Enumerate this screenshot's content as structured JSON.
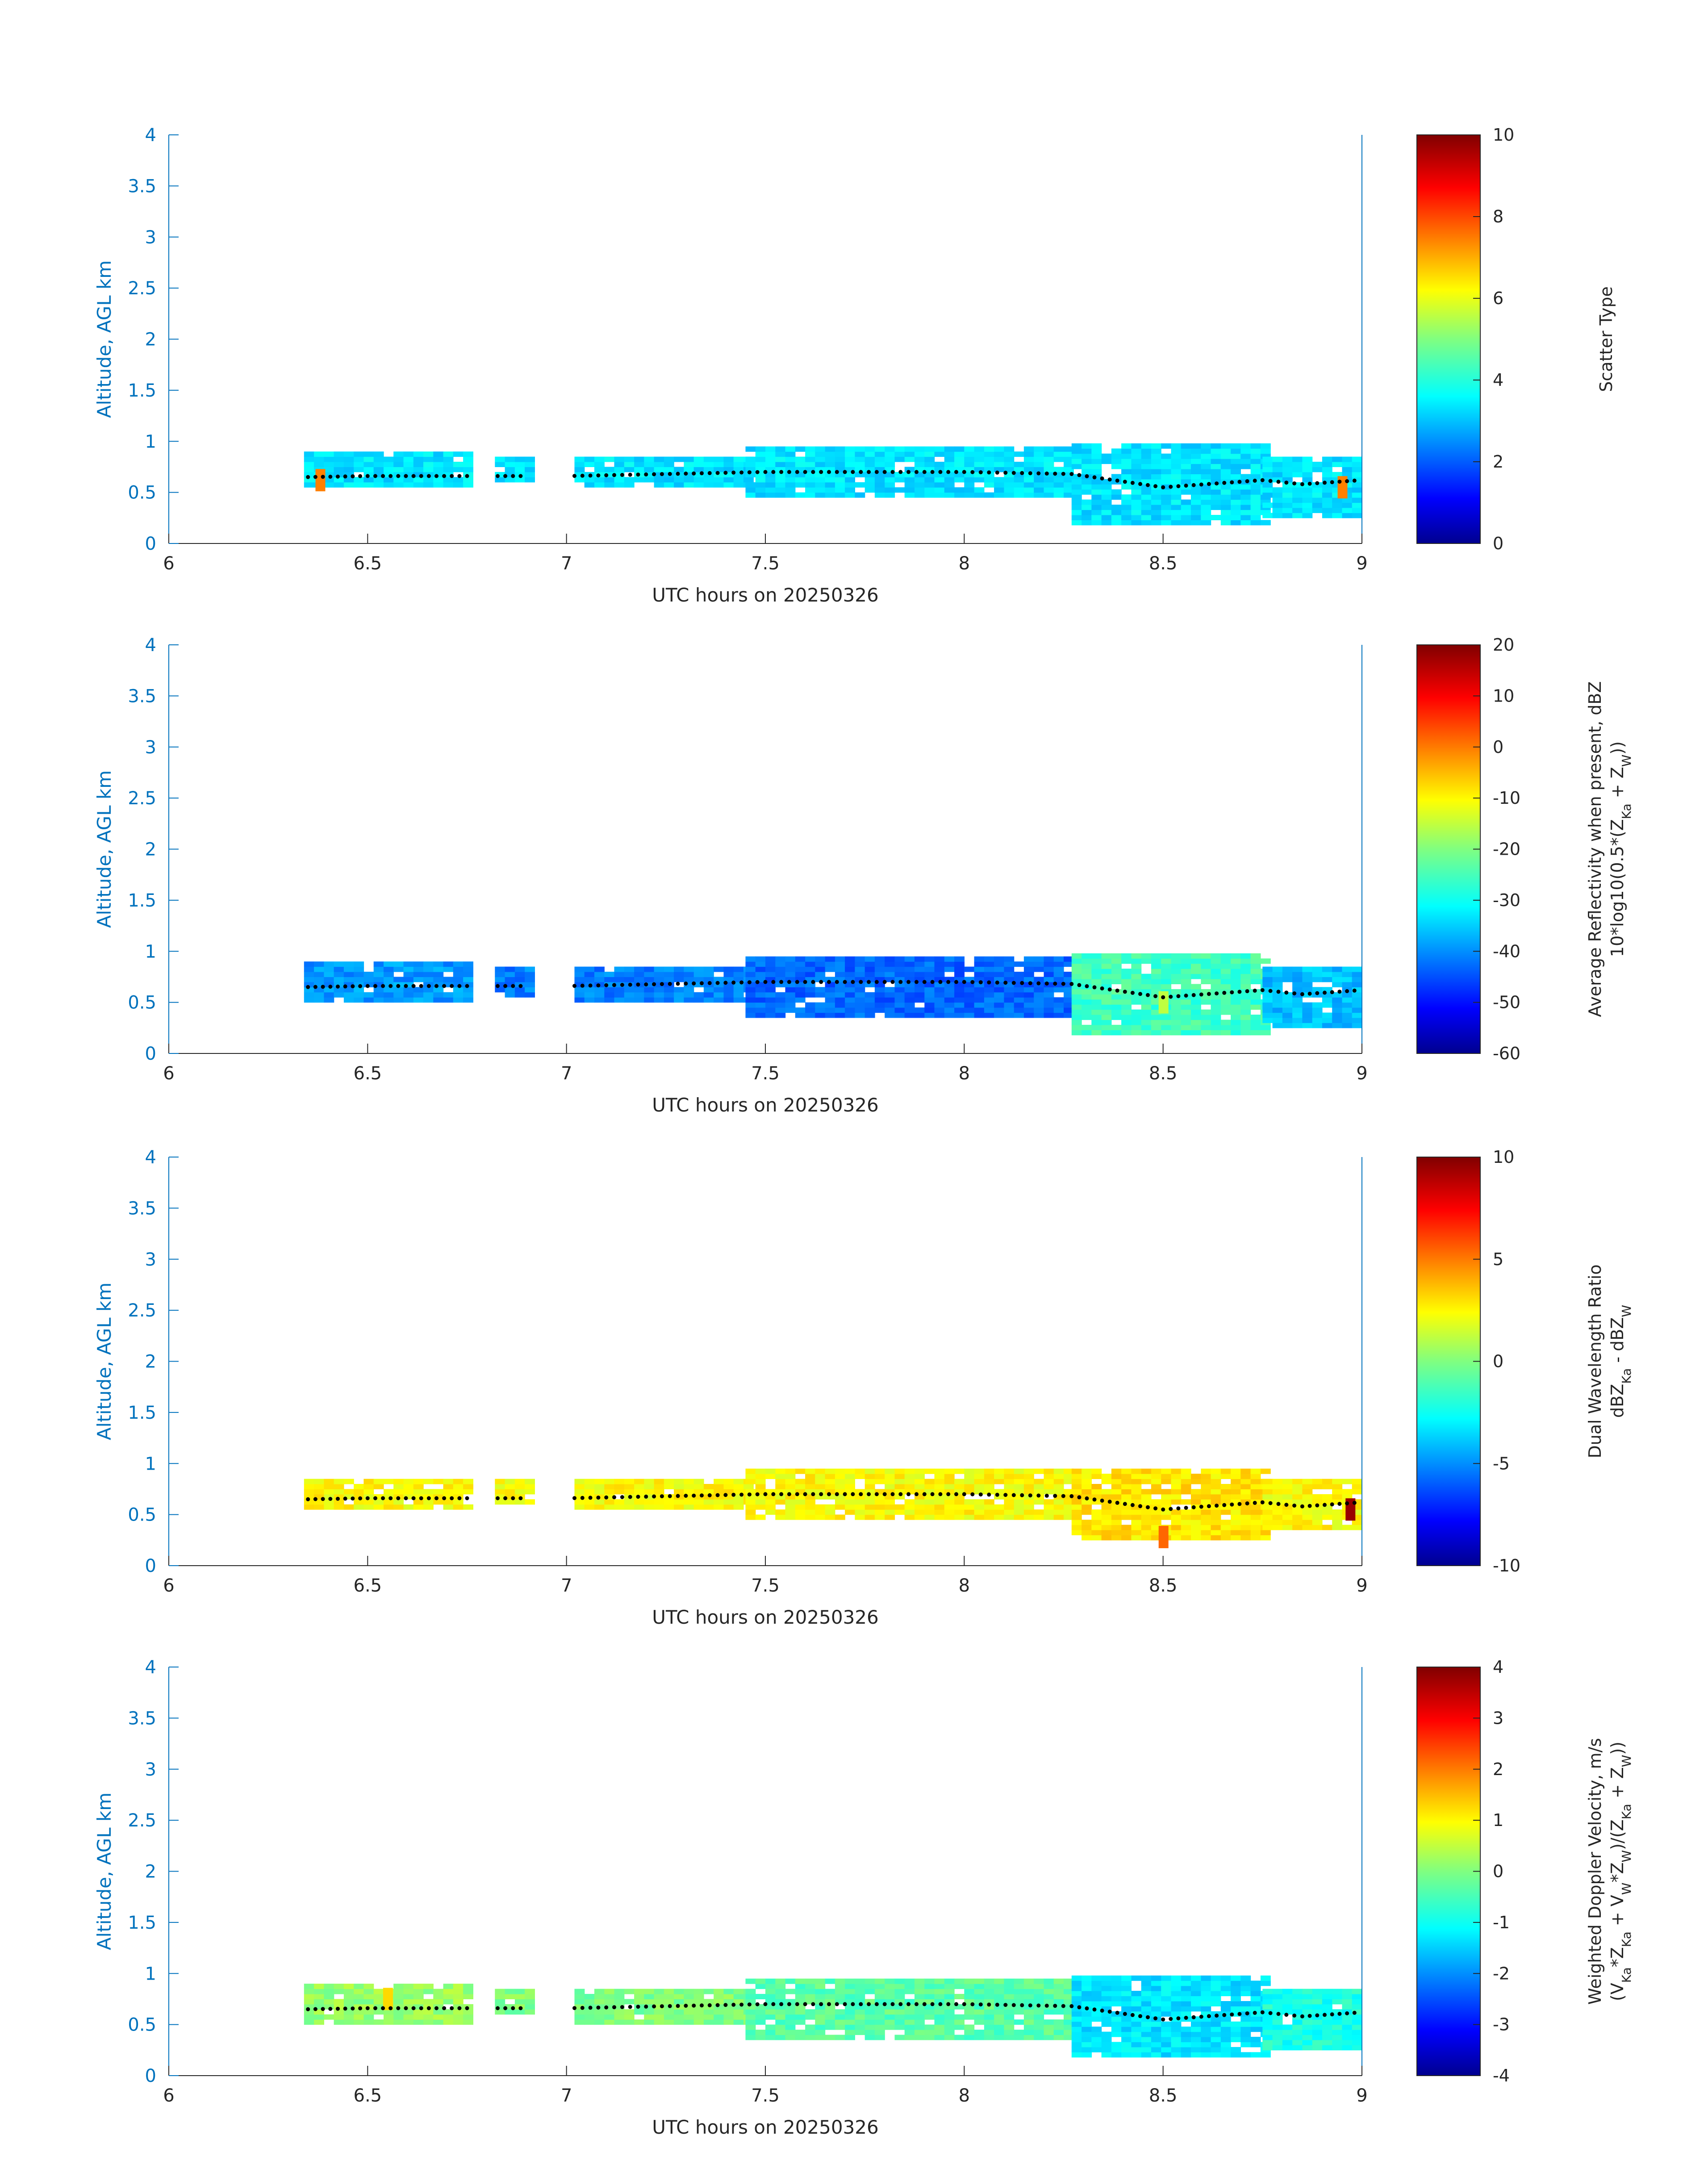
{
  "chart_data": [
    {
      "type": "heatmap",
      "xlabel": "UTC hours on 20250326",
      "ylabel": "Altitude, AGL km",
      "xlim": [
        6,
        9
      ],
      "ylim": [
        0,
        4
      ],
      "xticks": [
        "6",
        "6.5",
        "7",
        "7.5",
        "8",
        "8.5",
        "9"
      ],
      "yticks": [
        "0",
        "0.5",
        "1",
        "1.5",
        "2",
        "2.5",
        "3",
        "3.5",
        "4"
      ],
      "colorbar": {
        "lines": [
          "Scatter Type"
        ],
        "ticks": [
          "0",
          "2",
          "4",
          "6",
          "8",
          "10"
        ],
        "range": [
          0,
          10
        ]
      },
      "colormap": "jet",
      "regions": [
        {
          "x": [
            6.34,
            6.75
          ],
          "y": [
            0.55,
            0.88
          ],
          "value": 3.5
        },
        {
          "x": [
            6.82,
            6.9
          ],
          "y": [
            0.6,
            0.82
          ],
          "value": 3.5
        },
        {
          "x": [
            7.02,
            7.45
          ],
          "y": [
            0.55,
            0.82
          ],
          "value": 3.5
        },
        {
          "x": [
            7.45,
            8.27
          ],
          "y": [
            0.45,
            0.95
          ],
          "value": 3.5
        },
        {
          "x": [
            8.27,
            8.75
          ],
          "y": [
            0.18,
            0.95
          ],
          "value": 3.5
        },
        {
          "x": [
            8.75,
            9.0
          ],
          "y": [
            0.25,
            0.82
          ],
          "value": 3.5
        }
      ],
      "highlights": [
        {
          "x": 6.38,
          "y": 0.62,
          "value": 7.5
        },
        {
          "x": 8.95,
          "y": 0.55,
          "value": 7.5
        }
      ],
      "cloud_base_km": [
        {
          "x": 6.35,
          "y": 0.65
        },
        {
          "x": 6.5,
          "y": 0.66
        },
        {
          "x": 6.75,
          "y": 0.66
        },
        {
          "x": 7.0,
          "y": 0.66
        },
        {
          "x": 7.5,
          "y": 0.7
        },
        {
          "x": 8.0,
          "y": 0.7
        },
        {
          "x": 8.27,
          "y": 0.68
        },
        {
          "x": 8.5,
          "y": 0.55
        },
        {
          "x": 8.75,
          "y": 0.62
        },
        {
          "x": 8.85,
          "y": 0.58
        },
        {
          "x": 9.0,
          "y": 0.62
        }
      ]
    },
    {
      "type": "heatmap",
      "xlabel": "UTC hours on 20250326",
      "ylabel": "Altitude, AGL km",
      "xlim": [
        6,
        9
      ],
      "ylim": [
        0,
        4
      ],
      "xticks": [
        "6",
        "6.5",
        "7",
        "7.5",
        "8",
        "8.5",
        "9"
      ],
      "yticks": [
        "0",
        "0.5",
        "1",
        "1.5",
        "2",
        "2.5",
        "3",
        "3.5",
        "4"
      ],
      "colorbar": {
        "lines": [
          "Average Reflectivity when present, dBZ",
          "10*log10(0.5*(Z_Ka + Z_W))"
        ],
        "ticks": [
          "-60",
          "-50",
          "-40",
          "-30",
          "-20",
          "-10",
          "0",
          "10",
          "20"
        ],
        "range": [
          -60,
          20
        ]
      },
      "colormap": "jet",
      "regions": [
        {
          "x": [
            6.34,
            6.75
          ],
          "y": [
            0.5,
            0.88
          ],
          "value": -38
        },
        {
          "x": [
            6.82,
            6.9
          ],
          "y": [
            0.55,
            0.82
          ],
          "value": -40
        },
        {
          "x": [
            7.02,
            7.45
          ],
          "y": [
            0.5,
            0.82
          ],
          "value": -40
        },
        {
          "x": [
            7.45,
            8.27
          ],
          "y": [
            0.35,
            0.95
          ],
          "value": -42
        },
        {
          "x": [
            8.27,
            8.75
          ],
          "y": [
            0.18,
            0.95
          ],
          "value": -25
        },
        {
          "x": [
            8.75,
            9.0
          ],
          "y": [
            0.25,
            0.85
          ],
          "value": -35
        }
      ],
      "highlights": [
        {
          "x": 8.5,
          "y": 0.5,
          "value": -15
        }
      ],
      "cloud_base_km": [
        {
          "x": 6.35,
          "y": 0.65
        },
        {
          "x": 6.5,
          "y": 0.66
        },
        {
          "x": 6.75,
          "y": 0.66
        },
        {
          "x": 7.0,
          "y": 0.66
        },
        {
          "x": 7.5,
          "y": 0.7
        },
        {
          "x": 8.0,
          "y": 0.7
        },
        {
          "x": 8.27,
          "y": 0.68
        },
        {
          "x": 8.5,
          "y": 0.55
        },
        {
          "x": 8.75,
          "y": 0.62
        },
        {
          "x": 8.85,
          "y": 0.58
        },
        {
          "x": 9.0,
          "y": 0.62
        }
      ]
    },
    {
      "type": "heatmap",
      "xlabel": "UTC hours on 20250326",
      "ylabel": "Altitude, AGL km",
      "xlim": [
        6,
        9
      ],
      "ylim": [
        0,
        4
      ],
      "xticks": [
        "6",
        "6.5",
        "7",
        "7.5",
        "8",
        "8.5",
        "9"
      ],
      "yticks": [
        "0",
        "0.5",
        "1",
        "1.5",
        "2",
        "2.5",
        "3",
        "3.5",
        "4"
      ],
      "colorbar": {
        "lines": [
          "Dual Wavelength Ratio",
          "dBZ_Ka - dBZ_W"
        ],
        "ticks": [
          "-10",
          "-5",
          "0",
          "5",
          "10"
        ],
        "range": [
          -10,
          10
        ]
      },
      "colormap": "jet",
      "regions": [
        {
          "x": [
            6.34,
            6.75
          ],
          "y": [
            0.55,
            0.85
          ],
          "value": 2.5
        },
        {
          "x": [
            6.82,
            6.9
          ],
          "y": [
            0.6,
            0.82
          ],
          "value": 2.5
        },
        {
          "x": [
            7.02,
            7.45
          ],
          "y": [
            0.55,
            0.82
          ],
          "value": 2.5
        },
        {
          "x": [
            7.45,
            8.27
          ],
          "y": [
            0.45,
            0.92
          ],
          "value": 2.5
        },
        {
          "x": [
            8.27,
            8.75
          ],
          "y": [
            0.25,
            0.95
          ],
          "value": 3.0
        },
        {
          "x": [
            8.75,
            9.0
          ],
          "y": [
            0.35,
            0.82
          ],
          "value": 2.5
        }
      ],
      "highlights": [
        {
          "x": 8.5,
          "y": 0.28,
          "value": 5.5
        },
        {
          "x": 8.97,
          "y": 0.55,
          "value": 9.5
        }
      ],
      "cloud_base_km": [
        {
          "x": 6.35,
          "y": 0.65
        },
        {
          "x": 6.5,
          "y": 0.66
        },
        {
          "x": 6.75,
          "y": 0.66
        },
        {
          "x": 7.0,
          "y": 0.66
        },
        {
          "x": 7.5,
          "y": 0.7
        },
        {
          "x": 8.0,
          "y": 0.7
        },
        {
          "x": 8.27,
          "y": 0.68
        },
        {
          "x": 8.5,
          "y": 0.55
        },
        {
          "x": 8.75,
          "y": 0.62
        },
        {
          "x": 8.85,
          "y": 0.58
        },
        {
          "x": 9.0,
          "y": 0.62
        }
      ]
    },
    {
      "type": "heatmap",
      "xlabel": "UTC hours on 20250326",
      "ylabel": "Altitude, AGL km",
      "xlim": [
        6,
        9
      ],
      "ylim": [
        0,
        4
      ],
      "xticks": [
        "6",
        "6.5",
        "7",
        "7.5",
        "8",
        "8.5",
        "9"
      ],
      "yticks": [
        "0",
        "0.5",
        "1",
        "1.5",
        "2",
        "2.5",
        "3",
        "3.5",
        "4"
      ],
      "colorbar": {
        "lines": [
          "Weighted Doppler Velocity, m/s",
          "(V_Ka*Z_Ka + V_W*Z_W)/(Z_Ka + Z_W))"
        ],
        "ticks": [
          "-4",
          "-3",
          "-2",
          "-1",
          "0",
          "1",
          "2",
          "3",
          "4"
        ],
        "range": [
          -4,
          4
        ]
      },
      "colormap": "jet",
      "regions": [
        {
          "x": [
            6.34,
            6.75
          ],
          "y": [
            0.5,
            0.88
          ],
          "value": 0.2
        },
        {
          "x": [
            6.82,
            6.9
          ],
          "y": [
            0.6,
            0.82
          ],
          "value": 0.0
        },
        {
          "x": [
            7.02,
            7.45
          ],
          "y": [
            0.5,
            0.85
          ],
          "value": 0.0
        },
        {
          "x": [
            7.45,
            8.27
          ],
          "y": [
            0.35,
            0.95
          ],
          "value": -0.3
        },
        {
          "x": [
            8.27,
            8.75
          ],
          "y": [
            0.18,
            0.95
          ],
          "value": -1.2
        },
        {
          "x": [
            8.75,
            9.0
          ],
          "y": [
            0.25,
            0.85
          ],
          "value": -0.8
        }
      ],
      "highlights": [
        {
          "x": 6.55,
          "y": 0.75,
          "value": 1.3
        }
      ],
      "cloud_base_km": [
        {
          "x": 6.35,
          "y": 0.65
        },
        {
          "x": 6.5,
          "y": 0.66
        },
        {
          "x": 6.75,
          "y": 0.66
        },
        {
          "x": 7.0,
          "y": 0.66
        },
        {
          "x": 7.5,
          "y": 0.7
        },
        {
          "x": 8.0,
          "y": 0.7
        },
        {
          "x": 8.27,
          "y": 0.68
        },
        {
          "x": 8.5,
          "y": 0.55
        },
        {
          "x": 8.75,
          "y": 0.62
        },
        {
          "x": 8.85,
          "y": 0.58
        },
        {
          "x": 9.0,
          "y": 0.62
        }
      ]
    }
  ]
}
